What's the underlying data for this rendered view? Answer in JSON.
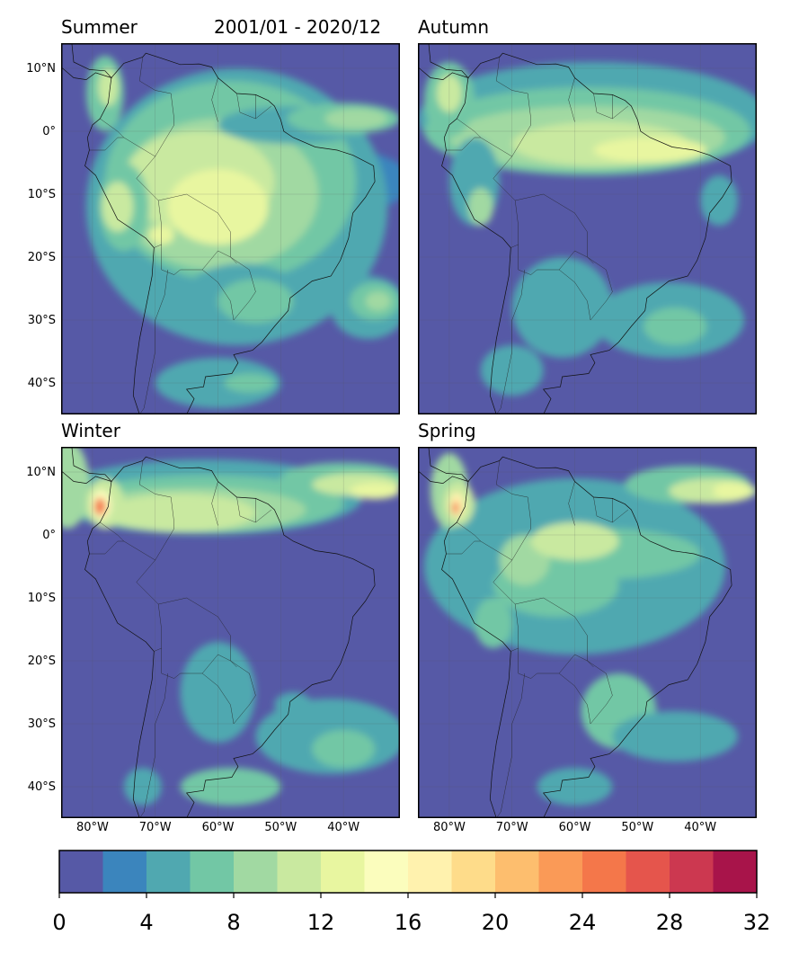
{
  "period": "2001/01 - 2020/12",
  "panels": [
    {
      "title": "Summer",
      "show_lat": true,
      "show_lon": false
    },
    {
      "title": "Autumn",
      "show_lat": false,
      "show_lon": false
    },
    {
      "title": "Winter",
      "show_lat": true,
      "show_lon": true
    },
    {
      "title": "Spring",
      "show_lat": false,
      "show_lon": true
    }
  ],
  "lat_ticks": [
    {
      "value": 10,
      "label": "10°N"
    },
    {
      "value": 0,
      "label": "0°"
    },
    {
      "value": -10,
      "label": "10°S"
    },
    {
      "value": -20,
      "label": "20°S"
    },
    {
      "value": -30,
      "label": "30°S"
    },
    {
      "value": -40,
      "label": "40°S"
    }
  ],
  "lon_ticks": [
    {
      "value": -80,
      "label": "80°W"
    },
    {
      "value": -70,
      "label": "70°W"
    },
    {
      "value": -60,
      "label": "60°W"
    },
    {
      "value": -50,
      "label": "50°W"
    },
    {
      "value": -40,
      "label": "40°W"
    }
  ],
  "extent": {
    "lon_min": -85,
    "lon_max": -31,
    "lat_min": -45,
    "lat_max": 14
  },
  "colorbar": {
    "levels": [
      0,
      2,
      4,
      6,
      8,
      10,
      12,
      14,
      16,
      18,
      20,
      22,
      24,
      26,
      28,
      30,
      32
    ],
    "colors": [
      "#5659a6",
      "#3b85bd",
      "#50a8b0",
      "#72c7a5",
      "#a1d9a2",
      "#c9e9a0",
      "#e8f6a0",
      "#fbfdbd",
      "#fff2ae",
      "#fedc8a",
      "#fdbe6e",
      "#fa9a57",
      "#f4774a",
      "#e5554c",
      "#cc3850",
      "#a8144a"
    ],
    "tick_labels": [
      "0",
      "4",
      "8",
      "12",
      "16",
      "20",
      "24",
      "28",
      "32"
    ]
  }
}
